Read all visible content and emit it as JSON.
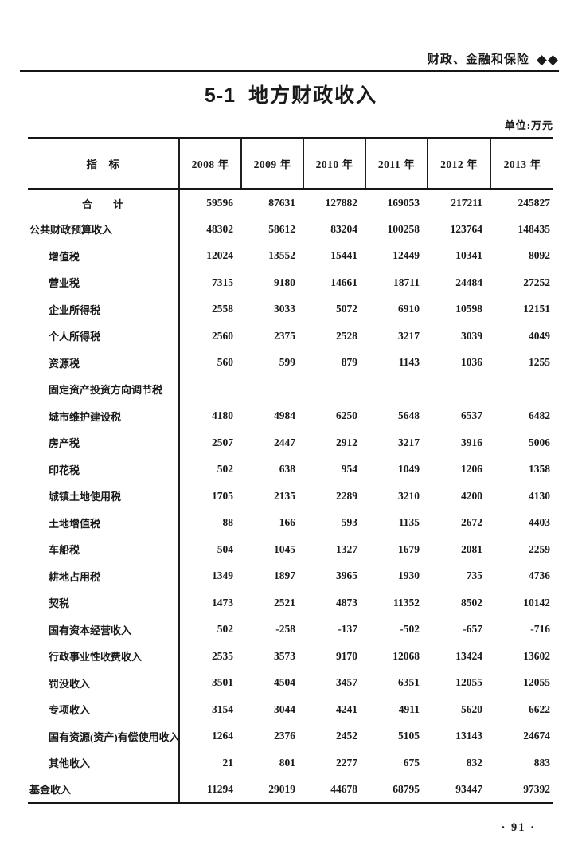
{
  "page": {
    "masthead": {
      "section_title": "财政、金融和保险",
      "diamonds": "◆◆"
    },
    "title": {
      "number": "5-1",
      "text": "地方财政收入"
    },
    "unit_label": "单位:万元",
    "page_number": "· 91 ·"
  },
  "colors": {
    "ink": "#1a1a1a",
    "paper": "#ffffff",
    "rule": "#161616"
  },
  "table": {
    "indicator_header": "指　标",
    "year_headers": [
      "2008 年",
      "2009 年",
      "2010 年",
      "2011 年",
      "2012 年",
      "2013 年"
    ],
    "rows": [
      {
        "label": "合　　计",
        "indent": 0,
        "align": "center",
        "values": [
          "59596",
          "87631",
          "127882",
          "169053",
          "217211",
          "245827"
        ]
      },
      {
        "label": "公共财政预算收入",
        "indent": 0,
        "values": [
          "48302",
          "58612",
          "83204",
          "100258",
          "123764",
          "148435"
        ]
      },
      {
        "label": "增值税",
        "indent": 1,
        "values": [
          "12024",
          "13552",
          "15441",
          "12449",
          "10341",
          "8092"
        ]
      },
      {
        "label": "营业税",
        "indent": 1,
        "values": [
          "7315",
          "9180",
          "14661",
          "18711",
          "24484",
          "27252"
        ]
      },
      {
        "label": "企业所得税",
        "indent": 1,
        "values": [
          "2558",
          "3033",
          "5072",
          "6910",
          "10598",
          "12151"
        ]
      },
      {
        "label": "个人所得税",
        "indent": 1,
        "values": [
          "2560",
          "2375",
          "2528",
          "3217",
          "3039",
          "4049"
        ]
      },
      {
        "label": "资源税",
        "indent": 1,
        "values": [
          "560",
          "599",
          "879",
          "1143",
          "1036",
          "1255"
        ]
      },
      {
        "label": "固定资产投资方向调节税",
        "indent": 1,
        "values": [
          "",
          "",
          "",
          "",
          "",
          ""
        ]
      },
      {
        "label": "城市维护建设税",
        "indent": 1,
        "values": [
          "4180",
          "4984",
          "6250",
          "5648",
          "6537",
          "6482"
        ]
      },
      {
        "label": "房产税",
        "indent": 1,
        "values": [
          "2507",
          "2447",
          "2912",
          "3217",
          "3916",
          "5006"
        ]
      },
      {
        "label": "印花税",
        "indent": 1,
        "values": [
          "502",
          "638",
          "954",
          "1049",
          "1206",
          "1358"
        ]
      },
      {
        "label": "城镇土地使用税",
        "indent": 1,
        "values": [
          "1705",
          "2135",
          "2289",
          "3210",
          "4200",
          "4130"
        ]
      },
      {
        "label": "土地增值税",
        "indent": 1,
        "values": [
          "88",
          "166",
          "593",
          "1135",
          "2672",
          "4403"
        ]
      },
      {
        "label": "车船税",
        "indent": 1,
        "values": [
          "504",
          "1045",
          "1327",
          "1679",
          "2081",
          "2259"
        ]
      },
      {
        "label": "耕地占用税",
        "indent": 1,
        "values": [
          "1349",
          "1897",
          "3965",
          "1930",
          "735",
          "4736"
        ]
      },
      {
        "label": "契税",
        "indent": 1,
        "values": [
          "1473",
          "2521",
          "4873",
          "11352",
          "8502",
          "10142"
        ]
      },
      {
        "label": "国有资本经营收入",
        "indent": 1,
        "values": [
          "502",
          "-258",
          "-137",
          "-502",
          "-657",
          "-716"
        ]
      },
      {
        "label": "行政事业性收费收入",
        "indent": 1,
        "values": [
          "2535",
          "3573",
          "9170",
          "12068",
          "13424",
          "13602"
        ]
      },
      {
        "label": "罚没收入",
        "indent": 1,
        "values": [
          "3501",
          "4504",
          "3457",
          "6351",
          "12055",
          "12055"
        ]
      },
      {
        "label": "专项收入",
        "indent": 1,
        "values": [
          "3154",
          "3044",
          "4241",
          "4911",
          "5620",
          "6622"
        ]
      },
      {
        "label": "国有资源(资产)有偿使用收入",
        "indent": 1,
        "values": [
          "1264",
          "2376",
          "2452",
          "5105",
          "13143",
          "24674"
        ]
      },
      {
        "label": "其他收入",
        "indent": 1,
        "values": [
          "21",
          "801",
          "2277",
          "675",
          "832",
          "883"
        ]
      },
      {
        "label": "基金收入",
        "indent": 0,
        "values": [
          "11294",
          "29019",
          "44678",
          "68795",
          "93447",
          "97392"
        ]
      }
    ]
  }
}
